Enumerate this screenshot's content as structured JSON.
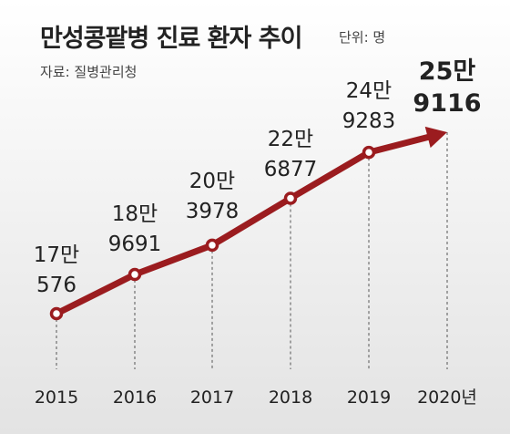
{
  "title": "만성콩팥병 진료 환자 추이",
  "unit_label": "단위: 명",
  "source_label": "자료: 질병관리청",
  "colors": {
    "line": "#9b1c1f",
    "marker_fill": "#ffffff",
    "grid": "#555555",
    "text": "#222222",
    "bg_top": "#ffffff",
    "bg_bottom": "#e3e3e3"
  },
  "chart_data": {
    "type": "line",
    "title": "만성콩팥병 진료 환자 추이",
    "unit": "단위: 명",
    "source": "자료: 질병관리청",
    "x": [
      "2015",
      "2016",
      "2017",
      "2018",
      "2019",
      "2020년"
    ],
    "values": [
      170576,
      189691,
      203978,
      226877,
      249283,
      259116
    ],
    "value_labels": [
      [
        "17만",
        "576"
      ],
      [
        "18만",
        "9691"
      ],
      [
        "20만",
        "3978"
      ],
      [
        "22만",
        "6877"
      ],
      [
        "24만",
        "9283"
      ],
      [
        "25만",
        "9116"
      ]
    ],
    "last_point": "arrow",
    "grid": "vertical dashed drop lines",
    "legend": "none"
  }
}
